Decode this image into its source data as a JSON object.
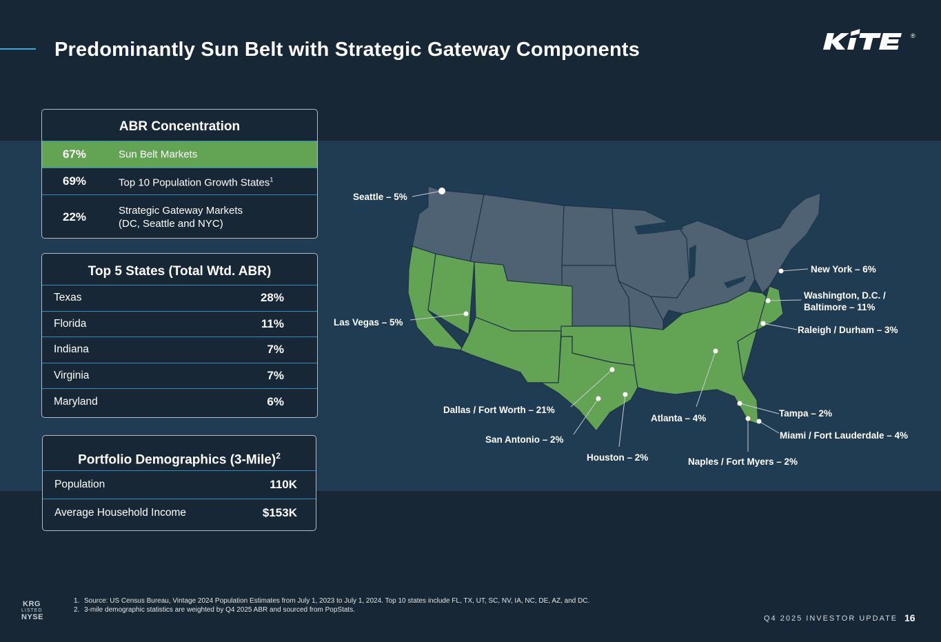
{
  "slide": {
    "title": "Predominantly Sun Belt with Strategic Gateway Components",
    "logo_text": "KITE",
    "logo_mark": "®"
  },
  "abr": {
    "heading": "ABR Concentration",
    "rows": [
      {
        "pct": "67%",
        "label": "Sun Belt Markets"
      },
      {
        "pct": "69%",
        "label": "Top 10 Population Growth States",
        "sup": "1"
      },
      {
        "pct": "22%",
        "label": "Strategic Gateway Markets\n(DC, Seattle and NYC)"
      }
    ]
  },
  "states": {
    "heading": "Top 5 States (Total Wtd. ABR)",
    "rows": [
      {
        "name": "Texas",
        "value": "28%"
      },
      {
        "name": "Florida",
        "value": "11%"
      },
      {
        "name": "Indiana",
        "value": "7%"
      },
      {
        "name": "Virginia",
        "value": "7%"
      },
      {
        "name": "Maryland",
        "value": "6%"
      }
    ]
  },
  "demographics": {
    "heading": "Portfolio Demographics (3-Mile)",
    "heading_sup": "2",
    "rows": [
      {
        "name": "Population",
        "value": "110K"
      },
      {
        "name": "Average Household Income",
        "value": "$153K"
      }
    ]
  },
  "map": {
    "cities": [
      {
        "label": "Seattle – 5%"
      },
      {
        "label": "Las Vegas – 5%"
      },
      {
        "label": "Dallas / Fort Worth – 21%"
      },
      {
        "label": "San Antonio – 2%"
      },
      {
        "label": "Houston – 2%"
      },
      {
        "label": "Atlanta – 4%"
      },
      {
        "label": "Naples / Fort Myers – 2%"
      },
      {
        "label": "Tampa – 2%"
      },
      {
        "label": "Miami / Fort Lauderdale – 4%"
      },
      {
        "label": "Raleigh / Durham – 3%"
      },
      {
        "label": "Washington, D.C. /\nBaltimore – 11%"
      },
      {
        "label": "New York – 6%"
      }
    ],
    "colors": {
      "sun_belt": "#63a454",
      "other": "#4e6274",
      "band": "#203c52"
    }
  },
  "footnotes": [
    {
      "num": "1.",
      "text": "Source: US Census Bureau, Vintage 2024 Population Estimates from July 1, 2023 to July 1, 2024. Top 10 states include FL, TX, UT, SC, NV, IA, NC, DE, AZ, and DC."
    },
    {
      "num": "2.",
      "text": "3-mile demographic statistics are weighted by Q4 2025 ABR and sourced from PopStats."
    }
  ],
  "badge": {
    "ticker": "KRG",
    "listed": "LISTED",
    "exchange": "NYSE"
  },
  "footer": {
    "label": "Q4 2025 INVESTOR UPDATE",
    "page": "16"
  }
}
